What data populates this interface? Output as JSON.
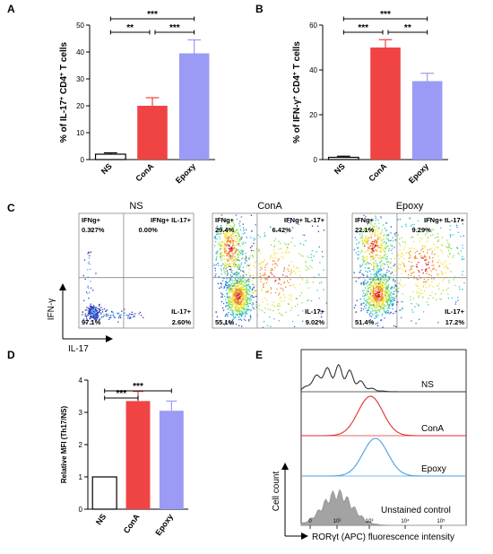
{
  "panels": {
    "A": "A",
    "B": "B",
    "C": "C",
    "D": "D",
    "E": "E"
  },
  "colors": {
    "NS": "#ffffff",
    "ConA": "#f04444",
    "Epoxy": "#9b9bf5",
    "hist_ns": "#333333",
    "hist_cona": "#e03030",
    "hist_epoxy": "#4aa0e0",
    "hist_unstained": "#999999"
  },
  "chart_data": [
    {
      "id": "A",
      "type": "bar",
      "categories": [
        "NS",
        "ConA",
        "Epoxy"
      ],
      "values": [
        2,
        20,
        39.5
      ],
      "errors": [
        0.5,
        3,
        5
      ],
      "ylabel_pre": "% of IL-17",
      "ylabel_sup1": "+",
      "ylabel_mid": " CD4",
      "ylabel_sup2": "+",
      "ylabel_post": " T cells",
      "ylim": [
        0,
        50
      ],
      "yticks": [
        "0",
        "10",
        "20",
        "30",
        "40",
        "50"
      ],
      "significance": [
        {
          "from": 0,
          "to": 1,
          "label": "**"
        },
        {
          "from": 1,
          "to": 2,
          "label": "***"
        },
        {
          "from": 0,
          "to": 2,
          "label": "***"
        }
      ]
    },
    {
      "id": "B",
      "type": "bar",
      "categories": [
        "NS",
        "ConA",
        "Epoxy"
      ],
      "values": [
        1,
        50,
        35
      ],
      "errors": [
        0.5,
        3.5,
        3.5
      ],
      "ylabel_pre": "% of IFN-γ",
      "ylabel_sup1": "+",
      "ylabel_mid": " CD4",
      "ylabel_sup2": "+",
      "ylabel_post": " T cells",
      "ylim": [
        0,
        60
      ],
      "yticks": [
        "0",
        "20",
        "40",
        "60"
      ],
      "significance": [
        {
          "from": 0,
          "to": 1,
          "label": "***"
        },
        {
          "from": 1,
          "to": 2,
          "label": "**"
        },
        {
          "from": 0,
          "to": 2,
          "label": "***"
        }
      ]
    },
    {
      "id": "D",
      "type": "bar",
      "categories": [
        "NS",
        "ConA",
        "Epoxy"
      ],
      "values": [
        1,
        3.35,
        3.05
      ],
      "errors": [
        0,
        0.3,
        0.3
      ],
      "ylabel": "Relative MFI (Th17/NS)",
      "ylim": [
        0,
        4
      ],
      "yticks": [
        "0",
        "1",
        "2",
        "3",
        "4"
      ],
      "significance": [
        {
          "from": 0,
          "to": 1,
          "label": "***"
        },
        {
          "from": 0,
          "to": 2,
          "label": "***"
        }
      ]
    }
  ],
  "flow": {
    "x_label": "IL-17",
    "y_label": "IFN-γ",
    "plots": [
      {
        "title": "NS",
        "q_tl_name": "IFNg+",
        "q_tl": "0.327%",
        "q_tr_name": "IFNg+ IL-17+",
        "q_tr": "0.00%",
        "q_bl_name": "-",
        "q_bl": "97.1%",
        "q_br_name": "IL-17+",
        "q_br": "2.60%"
      },
      {
        "title": "ConA",
        "q_tl_name": "IFNg+",
        "q_tl": "29.4%",
        "q_tr_name": "IFNg+ IL-17+",
        "q_tr": "6.42%",
        "q_bl_name": "-",
        "q_bl": "55.1%",
        "q_br_name": "IL-17+",
        "q_br": "9.02%"
      },
      {
        "title": "Epoxy",
        "q_tl_name": "IFNg+",
        "q_tl": "22.1%",
        "q_tr_name": "IFNg+ IL-17+",
        "q_tr": "9.29%",
        "q_bl_name": "-",
        "q_bl": "51.4%",
        "q_br_name": "IL-17+",
        "q_br": "17.2%"
      }
    ]
  },
  "histogram": {
    "ylabel": "Cell count",
    "xlabel": "RORγt (APC) fluorescence intensity",
    "ticks": [
      "0",
      "10²",
      "10³",
      "10⁴",
      "10⁵"
    ],
    "tracks": [
      {
        "label": "NS"
      },
      {
        "label": "ConA"
      },
      {
        "label": "Epoxy"
      },
      {
        "label": "Unstained control"
      }
    ]
  }
}
